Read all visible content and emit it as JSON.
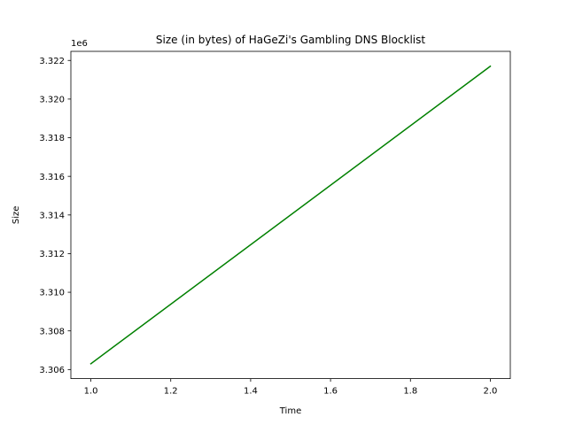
{
  "chart_data": {
    "type": "line",
    "title": "Size (in bytes) of HaGeZi's Gambling DNS Blocklist",
    "xlabel": "Time",
    "ylabel": "Size",
    "y_offset_label": "1e6",
    "x": [
      1.0,
      2.0
    ],
    "series": [
      {
        "values": [
          3306300,
          3321700
        ],
        "color": "#008000"
      }
    ],
    "xlim": [
      0.95,
      2.05
    ],
    "ylim": [
      3305530,
      3322470
    ],
    "x_ticks": [
      1.0,
      1.2,
      1.4,
      1.6,
      1.8,
      2.0
    ],
    "x_tick_labels": [
      "1.0",
      "1.2",
      "1.4",
      "1.6",
      "1.8",
      "2.0"
    ],
    "y_ticks": [
      3306000,
      3308000,
      3310000,
      3312000,
      3314000,
      3316000,
      3318000,
      3320000,
      3322000
    ],
    "y_tick_labels": [
      "3.306",
      "3.308",
      "3.310",
      "3.312",
      "3.314",
      "3.316",
      "3.318",
      "3.320",
      "3.322"
    ],
    "grid": false,
    "legend": "none"
  }
}
